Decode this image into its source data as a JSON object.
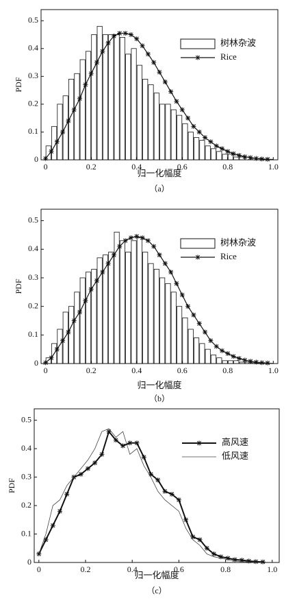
{
  "chart_data": [
    {
      "type": "histogram",
      "xlabel": "归一化幅度",
      "ylabel": "PDF",
      "caption": "（a）",
      "xlim": [
        -0.02,
        1.02
      ],
      "ylim": [
        0,
        0.54
      ],
      "xticks": [
        0,
        0.2,
        0.4,
        0.6,
        0.8,
        {
          "value": 1,
          "label": "1.0"
        }
      ],
      "yticks": [
        0,
        0.1,
        0.2,
        0.3,
        0.4,
        0.5
      ],
      "legend": "upper right",
      "bins": [
        0,
        0.025,
        0.05,
        0.075,
        0.1,
        0.125,
        0.15,
        0.175,
        0.2,
        0.225,
        0.25,
        0.275,
        0.3,
        0.325,
        0.35,
        0.375,
        0.4,
        0.425,
        0.45,
        0.475,
        0.5,
        0.525,
        0.55,
        0.575,
        0.6,
        0.625,
        0.65,
        0.675,
        0.7,
        0.725,
        0.75,
        0.775,
        0.8,
        0.825,
        0.85,
        0.875,
        0.9,
        0.925,
        0.95,
        0.975,
        1
      ],
      "series": [
        {
          "name": "树林杂波",
          "type": "histogram",
          "color": "#ffffff",
          "values": [
            0.05,
            0.12,
            0.2,
            0.23,
            0.29,
            0.31,
            0.36,
            0.39,
            0.45,
            0.48,
            0.45,
            0.45,
            0.45,
            0.44,
            0.38,
            0.4,
            0.34,
            0.29,
            0.27,
            0.24,
            0.2,
            0.2,
            0.18,
            0.16,
            0.13,
            0.1,
            0.08,
            0.07,
            0.05,
            0.04,
            0.03,
            0.02,
            0.02,
            0.01,
            0.01,
            0.01,
            0.005,
            0.005,
            0.003,
            0.002
          ]
        },
        {
          "name": "Rice",
          "type": "line",
          "color": "#111111",
          "marker": "star",
          "x": [
            0,
            0.025,
            0.05,
            0.075,
            0.1,
            0.125,
            0.15,
            0.175,
            0.2,
            0.225,
            0.25,
            0.275,
            0.3,
            0.325,
            0.35,
            0.375,
            0.4,
            0.425,
            0.45,
            0.475,
            0.5,
            0.525,
            0.55,
            0.575,
            0.6,
            0.625,
            0.65,
            0.675,
            0.7,
            0.725,
            0.75,
            0.775,
            0.8,
            0.825,
            0.85,
            0.875,
            0.9,
            0.925,
            0.95,
            0.975
          ],
          "values": [
            0.005,
            0.03,
            0.065,
            0.1,
            0.14,
            0.18,
            0.22,
            0.27,
            0.31,
            0.35,
            0.39,
            0.42,
            0.445,
            0.455,
            0.455,
            0.45,
            0.435,
            0.41,
            0.38,
            0.35,
            0.315,
            0.28,
            0.245,
            0.21,
            0.18,
            0.15,
            0.12,
            0.1,
            0.08,
            0.065,
            0.05,
            0.04,
            0.03,
            0.022,
            0.016,
            0.011,
            0.008,
            0.005,
            0.003,
            0.002
          ]
        }
      ]
    },
    {
      "type": "histogram",
      "xlabel": "归一化幅度",
      "ylabel": "PDF",
      "caption": "（b）",
      "xlim": [
        -0.02,
        1.02
      ],
      "ylim": [
        0,
        0.54
      ],
      "xticks": [
        0,
        0.2,
        0.4,
        0.6,
        0.8,
        {
          "value": 1,
          "label": "1.0"
        }
      ],
      "yticks": [
        0,
        0.1,
        0.2,
        0.3,
        0.4,
        0.5
      ],
      "legend": "upper right",
      "bins": [
        0,
        0.025,
        0.05,
        0.075,
        0.1,
        0.125,
        0.15,
        0.175,
        0.2,
        0.225,
        0.25,
        0.275,
        0.3,
        0.325,
        0.35,
        0.375,
        0.4,
        0.425,
        0.45,
        0.475,
        0.5,
        0.525,
        0.55,
        0.575,
        0.6,
        0.625,
        0.65,
        0.675,
        0.7,
        0.725,
        0.75,
        0.775,
        0.8,
        0.825,
        0.85,
        0.875,
        0.9,
        0.925,
        0.95,
        0.975,
        1
      ],
      "series": [
        {
          "name": "树林杂波",
          "type": "histogram",
          "color": "#ffffff",
          "values": [
            0.02,
            0.07,
            0.12,
            0.18,
            0.2,
            0.25,
            0.3,
            0.32,
            0.33,
            0.37,
            0.38,
            0.39,
            0.46,
            0.43,
            0.39,
            0.43,
            0.44,
            0.39,
            0.35,
            0.33,
            0.3,
            0.28,
            0.25,
            0.2,
            0.16,
            0.12,
            0.09,
            0.07,
            0.05,
            0.03,
            0.02,
            0.01,
            0.01,
            0.01,
            0.005,
            0.005,
            0.003,
            0.002,
            0.001,
            0.001
          ]
        },
        {
          "name": "Rice",
          "type": "line",
          "color": "#111111",
          "marker": "star",
          "x": [
            0,
            0.025,
            0.05,
            0.075,
            0.1,
            0.125,
            0.15,
            0.175,
            0.2,
            0.225,
            0.25,
            0.275,
            0.3,
            0.325,
            0.35,
            0.375,
            0.4,
            0.425,
            0.45,
            0.475,
            0.5,
            0.525,
            0.55,
            0.575,
            0.6,
            0.625,
            0.65,
            0.675,
            0.7,
            0.725,
            0.75,
            0.775,
            0.8,
            0.825,
            0.85,
            0.875,
            0.9,
            0.925,
            0.95,
            0.975
          ],
          "values": [
            0.003,
            0.02,
            0.05,
            0.08,
            0.11,
            0.15,
            0.18,
            0.22,
            0.26,
            0.29,
            0.32,
            0.35,
            0.38,
            0.41,
            0.43,
            0.44,
            0.445,
            0.44,
            0.43,
            0.41,
            0.38,
            0.35,
            0.32,
            0.28,
            0.24,
            0.2,
            0.17,
            0.14,
            0.11,
            0.08,
            0.06,
            0.045,
            0.035,
            0.025,
            0.018,
            0.012,
            0.008,
            0.005,
            0.003,
            0.002
          ]
        }
      ]
    },
    {
      "type": "line",
      "xlabel": "归一化幅度",
      "ylabel": "PDF",
      "caption": "（c）",
      "xlim": [
        -0.02,
        1.03
      ],
      "ylim": [
        0,
        0.54
      ],
      "xticks": [
        0,
        0.2,
        0.4,
        0.6,
        0.8,
        {
          "value": 1,
          "label": "1.0"
        }
      ],
      "yticks": [
        0,
        0.1,
        0.2,
        0.3,
        0.4,
        0.5
      ],
      "legend": "upper right",
      "series": [
        {
          "name": "高风速",
          "type": "line",
          "color": "#111111",
          "marker": "star",
          "width": 2,
          "x": [
            0,
            0.03,
            0.06,
            0.09,
            0.12,
            0.15,
            0.18,
            0.21,
            0.24,
            0.27,
            0.3,
            0.33,
            0.36,
            0.39,
            0.42,
            0.45,
            0.48,
            0.51,
            0.54,
            0.57,
            0.6,
            0.63,
            0.66,
            0.69,
            0.72,
            0.75,
            0.78,
            0.81,
            0.84,
            0.87,
            0.9,
            0.93,
            0.96
          ],
          "values": [
            0.03,
            0.08,
            0.13,
            0.18,
            0.24,
            0.3,
            0.31,
            0.33,
            0.35,
            0.38,
            0.46,
            0.43,
            0.41,
            0.42,
            0.42,
            0.37,
            0.31,
            0.29,
            0.25,
            0.24,
            0.22,
            0.15,
            0.09,
            0.08,
            0.05,
            0.03,
            0.02,
            0.015,
            0.01,
            0.008,
            0.005,
            0.003,
            0.002
          ]
        },
        {
          "name": "低风速",
          "type": "line",
          "color": "#444444",
          "width": 0.8,
          "x": [
            0,
            0.03,
            0.06,
            0.09,
            0.12,
            0.15,
            0.18,
            0.21,
            0.24,
            0.27,
            0.3,
            0.33,
            0.36,
            0.39,
            0.42,
            0.45,
            0.48,
            0.51,
            0.54,
            0.57,
            0.6,
            0.63,
            0.66,
            0.69,
            0.72,
            0.75,
            0.78,
            0.81,
            0.84,
            0.87,
            0.9,
            0.93,
            0.96
          ],
          "values": [
            0.03,
            0.1,
            0.2,
            0.22,
            0.27,
            0.3,
            0.33,
            0.36,
            0.4,
            0.46,
            0.47,
            0.44,
            0.46,
            0.38,
            0.4,
            0.34,
            0.3,
            0.25,
            0.22,
            0.2,
            0.18,
            0.12,
            0.08,
            0.06,
            0.03,
            0.02,
            0.015,
            0.01,
            0.005,
            0.003,
            0.002,
            0.001,
            0.001
          ]
        }
      ]
    }
  ]
}
